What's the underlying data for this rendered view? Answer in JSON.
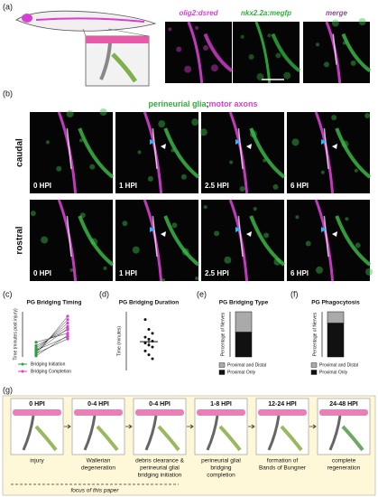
{
  "panel_labels": [
    "(a)",
    "(b)",
    "(c)",
    "(d)",
    "(e)",
    "(f)",
    "(g)"
  ],
  "a": {
    "channels": [
      {
        "name": "olig2:dsred",
        "color": "#d63fd1"
      },
      {
        "name": "nkx2.2a:megfp",
        "color": "#2fae3c"
      },
      {
        "name": "merge",
        "color": "#8a4f8a"
      }
    ]
  },
  "b": {
    "title_green": "perineurial glia",
    "title_sep": ";",
    "title_magenta": "motor axons",
    "rows": [
      "caudal",
      "rostral"
    ],
    "timepoints": [
      "0 HPI",
      "1 HPI",
      "2.5 HPI",
      "6 HPI"
    ]
  },
  "chart_data": [
    {
      "type": "paired",
      "title": "PG Bridging Timing",
      "y_label": "Time (minutes post injury)",
      "ylim": [
        0,
        400
      ],
      "series": [
        {
          "name": "Bridging Initiation",
          "color": "#2e9e3e",
          "values": [
            20,
            40,
            60,
            80,
            100,
            130,
            60,
            30,
            10,
            50
          ]
        },
        {
          "name": "Bridging Completion",
          "color": "#d63fd1",
          "values": [
            360,
            330,
            300,
            270,
            240,
            210,
            180,
            160,
            190,
            250
          ]
        }
      ]
    },
    {
      "type": "strip",
      "title": "PG Bridging Duration",
      "y_label": "Time (minutes)",
      "ylim": [
        0,
        300
      ],
      "values": [
        260,
        210,
        190,
        170,
        160,
        150,
        140,
        130,
        120,
        100,
        80,
        60
      ],
      "mean": 147,
      "sem": 18,
      "color": "#111"
    },
    {
      "type": "stacked_bar",
      "title": "PG Bridging Type",
      "y_label": "Percentage of Nerves",
      "ylim": [
        0,
        100
      ],
      "series": [
        {
          "name": "Proximal Only",
          "color": "#111",
          "values": [
            55
          ]
        },
        {
          "name": "Proximal and Distal",
          "color": "#aaa",
          "values": [
            45
          ]
        }
      ]
    },
    {
      "type": "stacked_bar",
      "title": "PG Phagocytosis",
      "y_label": "Percentage of Nerves",
      "ylim": [
        0,
        100
      ],
      "series": [
        {
          "name": "Proximal Only",
          "color": "#111",
          "values": [
            75
          ]
        },
        {
          "name": "Proximal and Distal",
          "color": "#aaa",
          "values": [
            25
          ]
        }
      ]
    }
  ],
  "g": {
    "stages": [
      {
        "time": "0 HPI",
        "caption": [
          "injury"
        ]
      },
      {
        "time": "0-4 HPI",
        "caption": [
          "Wallerian",
          "degeneration"
        ]
      },
      {
        "time": "0-4 HPI",
        "caption": [
          "debris clearance &",
          "perineurial glial",
          "bridging initiation"
        ]
      },
      {
        "time": "1-8 HPI",
        "caption": [
          "perineurial glial",
          "bridging",
          "completion"
        ]
      },
      {
        "time": "12-24 HPI",
        "caption": [
          "formation of",
          "Bands of Bungner"
        ]
      },
      {
        "time": "24-48 HPI",
        "caption": [
          "complete",
          "regeneration"
        ]
      }
    ],
    "footnote": "focus of this paper"
  }
}
